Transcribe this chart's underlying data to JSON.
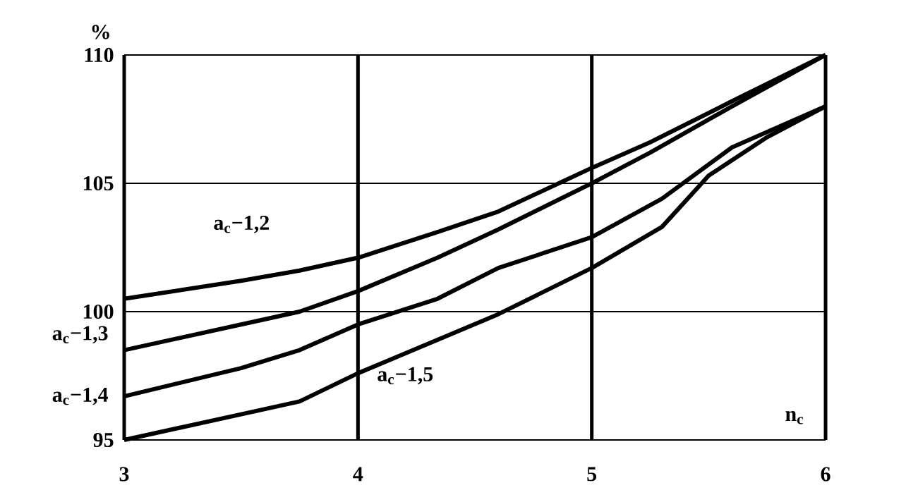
{
  "chart_data": {
    "type": "line",
    "xlabel": "n$_{c}$",
    "ylabel": "%",
    "xlim": [
      3,
      6
    ],
    "ylim": [
      95,
      110
    ],
    "xticks": [
      3,
      4,
      5,
      6
    ],
    "yticks": [
      95,
      100,
      105,
      110
    ],
    "grid": true,
    "marker": "none",
    "line_style": "solid",
    "series": [
      {
        "name": "a$_{c}$−1,2",
        "color": "#000000",
        "x": [
          3,
          3.5,
          3.75,
          4,
          4.34,
          4.6,
          5,
          5.25,
          5.6,
          6
        ],
        "values": [
          100.5,
          101.2,
          101.6,
          102.1,
          103.1,
          103.9,
          105.6,
          106.6,
          108.2,
          110
        ]
      },
      {
        "name": "a$_{c}$−1,3",
        "color": "#000000",
        "x": [
          3,
          3.5,
          3.75,
          4,
          4.34,
          4.6,
          5,
          5.25,
          5.6,
          6
        ],
        "values": [
          98.5,
          99.5,
          100,
          100.8,
          102.1,
          103.2,
          105,
          106.2,
          108,
          110
        ]
      },
      {
        "name": "a$_{c}$−1,4",
        "color": "#000000",
        "x": [
          3,
          3.5,
          3.75,
          4,
          4.34,
          4.6,
          5,
          5.3,
          5.6,
          6
        ],
        "values": [
          96.7,
          97.8,
          98.5,
          99.5,
          100.5,
          101.7,
          102.9,
          104.4,
          106.4,
          108
        ]
      },
      {
        "name": "a$_{c}$−1,5",
        "color": "#000000",
        "x": [
          3,
          3.5,
          3.75,
          4,
          4.34,
          4.6,
          5,
          5.3,
          5.5,
          5.75,
          6
        ],
        "values": [
          95,
          96,
          96.5,
          97.6,
          98.9,
          99.9,
          101.7,
          103.3,
          105.3,
          106.8,
          108
        ]
      }
    ]
  }
}
